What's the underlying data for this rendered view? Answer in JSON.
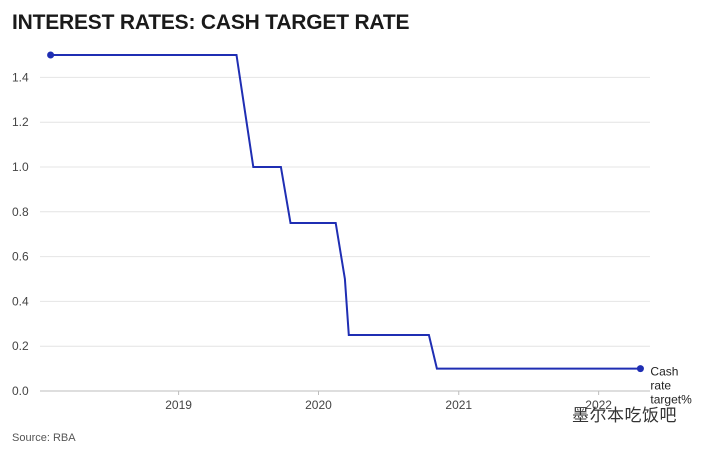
{
  "chart_data": {
    "type": "line",
    "title": "INTEREST RATES: CASH TARGET RATE",
    "xlabel": "",
    "ylabel": "",
    "x_range": [
      "2018-01-20",
      "2022-05-15"
    ],
    "ylim": [
      0,
      1.6
    ],
    "y_ticks": [
      {
        "value": 0.0,
        "label": "0.0"
      },
      {
        "value": 0.2,
        "label": "0.2"
      },
      {
        "value": 0.4,
        "label": "0.4"
      },
      {
        "value": 0.6,
        "label": "0.6"
      },
      {
        "value": 0.8,
        "label": "0.8"
      },
      {
        "value": 1.0,
        "label": "1.0"
      },
      {
        "value": 1.2,
        "label": "1.2"
      },
      {
        "value": 1.4,
        "label": "1.4"
      }
    ],
    "x_ticks": [
      {
        "value": "2019-01-01",
        "label": "2019"
      },
      {
        "value": "2020-01-01",
        "label": "2020"
      },
      {
        "value": "2021-01-01",
        "label": "2021"
      },
      {
        "value": "2022-01-01",
        "label": "2022"
      }
    ],
    "grid": true,
    "series": [
      {
        "name": "Cash rate target%",
        "label_lines": [
          "Cash",
          "rate",
          "target%"
        ],
        "color": "#1f2eb3",
        "points": [
          {
            "x": "2018-02-01",
            "y": 1.5
          },
          {
            "x": "2019-06-01",
            "y": 1.5
          },
          {
            "x": "2019-07-15",
            "y": 1.0
          },
          {
            "x": "2019-09-25",
            "y": 1.0
          },
          {
            "x": "2019-10-20",
            "y": 0.75
          },
          {
            "x": "2020-02-15",
            "y": 0.75
          },
          {
            "x": "2020-03-10",
            "y": 0.5
          },
          {
            "x": "2020-03-20",
            "y": 0.25
          },
          {
            "x": "2020-10-15",
            "y": 0.25
          },
          {
            "x": "2020-11-05",
            "y": 0.1
          },
          {
            "x": "2022-04-20",
            "y": 0.1
          }
        ]
      }
    ]
  },
  "source": "Source: RBA",
  "watermark": "墨尔本吃饭吧"
}
